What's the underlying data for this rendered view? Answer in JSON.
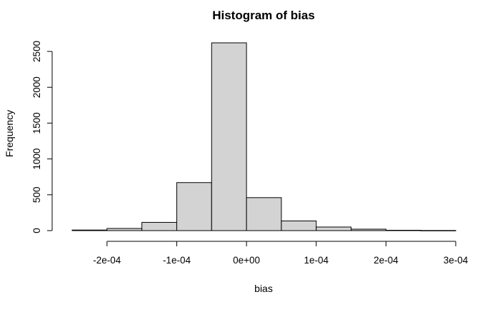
{
  "chart_data": {
    "type": "bar",
    "subtype": "histogram",
    "title": "Histogram of bias",
    "xlabel": "bias",
    "ylabel": "Frequency",
    "bin_edges": [
      -0.00025,
      -0.0002,
      -0.00015,
      -0.0001,
      -5e-05,
      0,
      5e-05,
      0.0001,
      0.00015,
      0.0002,
      0.00025,
      0.0003
    ],
    "values": [
      8,
      30,
      115,
      670,
      2620,
      460,
      135,
      50,
      20,
      5,
      2
    ],
    "xlim": [
      -0.00025,
      0.0003
    ],
    "ylim": [
      0,
      2600
    ],
    "x_ticks": [
      -0.0002,
      -0.0001,
      0,
      0.0001,
      0.0002,
      0.0003
    ],
    "x_tick_labels": [
      "-2e-04",
      "-1e-04",
      "0e+00",
      "1e-04",
      "2e-04",
      "3e-04"
    ],
    "y_ticks": [
      0,
      500,
      1000,
      1500,
      2000,
      2500
    ],
    "y_tick_labels": [
      "0",
      "500",
      "1000",
      "1500",
      "2000",
      "2500"
    ],
    "bar_fill": "#d3d3d3",
    "bar_stroke": "#000000",
    "grid": false,
    "legend": "none"
  }
}
